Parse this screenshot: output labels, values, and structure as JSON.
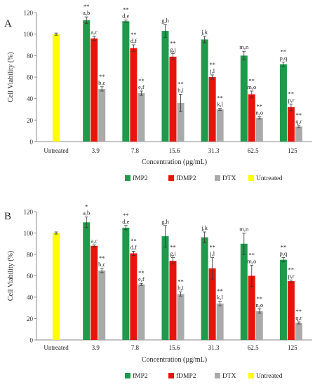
{
  "chart_data": [
    {
      "panel_label": "A",
      "type": "bar",
      "categories": [
        "Untreated",
        "3.9",
        "7.8",
        "15.6",
        "31.3",
        "62.5",
        "125"
      ],
      "xlabel": "Concentration (µg/mL)",
      "ylabel": "Cell Viability (%)",
      "ylim": [
        0,
        120
      ],
      "yticks": [
        "0",
        "20",
        "40",
        "60",
        "80",
        "100",
        "120"
      ],
      "grid": false,
      "legend_position": "bottom",
      "series": [
        {
          "name": "fMP2",
          "color": "#1e9a4a",
          "values": [
            null,
            113,
            112,
            103,
            95,
            80,
            72
          ],
          "errors": [
            null,
            3,
            1,
            6,
            3,
            4,
            2
          ],
          "labels": [
            null,
            "**\na,b",
            "**\nd,e",
            "g,h",
            "j,k",
            "m,n",
            "**\np,q"
          ]
        },
        {
          "name": "fDMP2",
          "color": "#e8140c",
          "values": [
            null,
            96,
            87,
            79,
            60,
            44,
            32
          ],
          "errors": [
            null,
            2,
            3,
            3,
            2,
            3,
            3
          ],
          "labels": [
            null,
            "a,c",
            "**\nd,f",
            "**\ng,j",
            "**\nj,l",
            "**\nm,o",
            "**\np,r"
          ]
        },
        {
          "name": "DTX",
          "color": "#aaaaaa",
          "values": [
            null,
            49,
            45,
            36,
            30,
            22,
            14
          ],
          "errors": [
            null,
            2,
            2,
            8,
            1,
            1,
            1
          ],
          "labels": [
            null,
            "**\nb,c",
            "**\ne,f",
            "**\nh,i",
            "**\nk,l",
            "**\nn,o",
            "**\nq,r"
          ]
        },
        {
          "name": "Untreated",
          "color": "#ffff00",
          "values": [
            100,
            null,
            null,
            null,
            null,
            null,
            null
          ],
          "errors": [
            1,
            null,
            null,
            null,
            null,
            null,
            null
          ],
          "labels": [
            null,
            null,
            null,
            null,
            null,
            null,
            null
          ]
        }
      ]
    },
    {
      "panel_label": "B",
      "type": "bar",
      "categories": [
        "Untreated",
        "3.9",
        "7.8",
        "15.6",
        "31.3",
        "62.5",
        "125"
      ],
      "xlabel": "Concentration (µg/mL)",
      "ylabel": "Cell Viability (%)",
      "ylim": [
        0,
        120
      ],
      "yticks": [
        "0",
        "20",
        "40",
        "60",
        "80",
        "100",
        "120"
      ],
      "grid": false,
      "legend_position": "bottom",
      "series": [
        {
          "name": "fMP2",
          "color": "#1e9a4a",
          "values": [
            null,
            110,
            105,
            97,
            96,
            90,
            75
          ],
          "errors": [
            null,
            5,
            2,
            10,
            5,
            10,
            2
          ],
          "labels": [
            null,
            "*\na,b",
            "**\nd,e",
            "g,h",
            "j,k",
            "m,n",
            "**\np,q"
          ]
        },
        {
          "name": "fDMP2",
          "color": "#e8140c",
          "values": [
            null,
            88,
            81,
            74,
            67,
            60,
            55
          ],
          "errors": [
            null,
            1,
            2,
            3,
            10,
            10,
            1
          ],
          "labels": [
            null,
            "a,c",
            "**\nd,f",
            "**\ng,i",
            "**\nj,l",
            "**\nm,o",
            "**\np,r"
          ]
        },
        {
          "name": "DTX",
          "color": "#aaaaaa",
          "values": [
            null,
            65,
            52,
            43,
            34,
            27,
            16
          ],
          "errors": [
            null,
            2,
            1,
            2,
            2,
            2,
            1
          ],
          "labels": [
            null,
            "**\nb,c",
            "**\ne,f",
            "**\nh,i",
            "**\nk,l",
            "**\nn,o",
            "**\nq,r"
          ]
        },
        {
          "name": "Untreated",
          "color": "#ffff00",
          "values": [
            100,
            null,
            null,
            null,
            null,
            null,
            null
          ],
          "errors": [
            1,
            null,
            null,
            null,
            null,
            null,
            null
          ],
          "labels": [
            null,
            null,
            null,
            null,
            null,
            null,
            null
          ]
        }
      ]
    }
  ]
}
